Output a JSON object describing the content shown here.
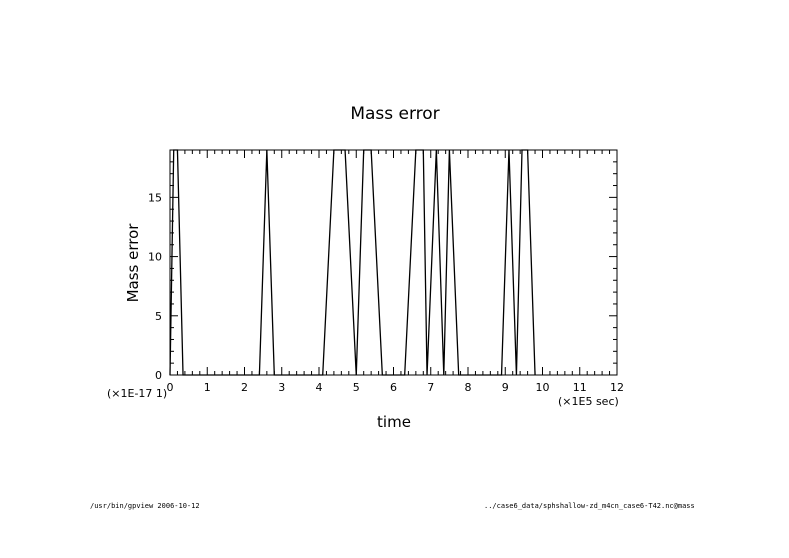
{
  "chart_data": {
    "type": "line",
    "title": "Mass error",
    "xlabel": "time",
    "ylabel": "Mass error",
    "x_scale_label": "(×1E5 sec)",
    "y_scale_label": "(×1E-17 1)",
    "xlim": [
      0,
      12
    ],
    "ylim": [
      0,
      19
    ],
    "x_ticks": [
      "0",
      "1",
      "2",
      "3",
      "4",
      "5",
      "6",
      "7",
      "8",
      "9",
      "10",
      "11",
      "12"
    ],
    "y_ticks": [
      "0",
      "5",
      "10",
      "15"
    ],
    "x_tick_values": [
      0,
      1,
      2,
      3,
      4,
      5,
      6,
      7,
      8,
      9,
      10,
      11,
      12
    ],
    "y_tick_values": [
      0,
      5,
      10,
      15
    ],
    "grid": false,
    "line_color": "#000000",
    "series": [
      {
        "x": [
          0,
          0.1,
          0.2,
          0.35,
          2.4,
          2.6,
          2.8,
          4.1,
          4.4,
          4.7,
          5.0,
          5.2,
          5.4,
          5.7,
          6.3,
          6.6,
          6.8,
          6.9,
          7.15,
          7.35,
          7.5,
          7.75,
          8.9,
          9.1,
          9.3,
          9.45,
          9.6,
          9.8
        ],
        "y": [
          0,
          19,
          19,
          0,
          0,
          19,
          0,
          0,
          19,
          19,
          0,
          19,
          19,
          0,
          0,
          19,
          19,
          0,
          19,
          0,
          19,
          0,
          0,
          19,
          0,
          19,
          19,
          0
        ]
      }
    ]
  },
  "footer": {
    "left": "/usr/bin/gpview 2006-10-12",
    "right": "../case6_data/sphshallow-zd_m4cn_case6-T42.nc@mass"
  }
}
